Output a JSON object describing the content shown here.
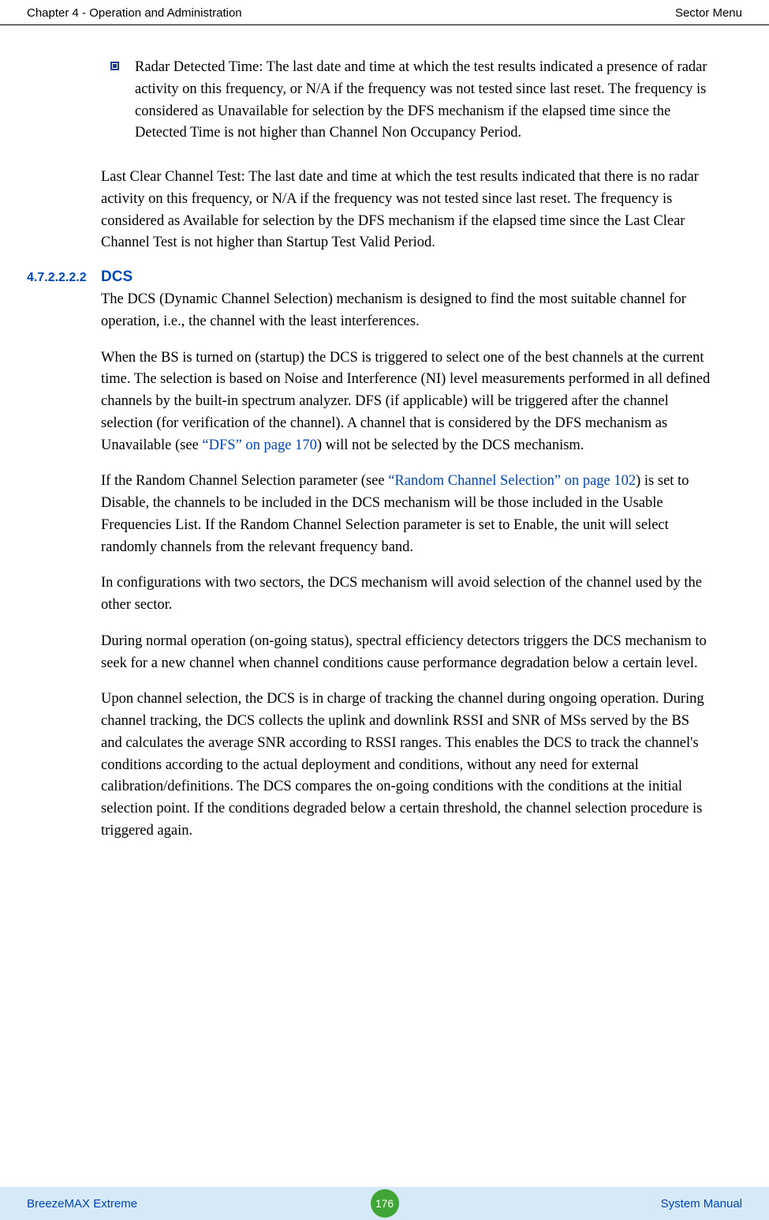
{
  "header": {
    "left": "Chapter 4 - Operation and Administration",
    "right": "Sector Menu"
  },
  "bullet": {
    "text": "Radar Detected Time: The last date and time at which the test results indicated a presence of radar activity on this frequency, or N/A if the frequency was not tested since last reset. The frequency is considered as Unavailable for selection by the DFS mechanism if the elapsed time since the Detected Time is not higher than Channel Non Occupancy Period."
  },
  "para_last_clear": "Last Clear Channel Test: The last date and time at which the test results indicated that there is no radar activity on this frequency, or N/A if the frequency was not tested since last reset. The frequency is considered as Available for selection by the DFS mechanism if the elapsed time since the Last Clear Channel Test is not higher than Startup Test Valid Period.",
  "section": {
    "number": "4.7.2.2.2.2",
    "title": "DCS"
  },
  "dcs": {
    "p1": "The DCS (Dynamic Channel Selection) mechanism is designed to find the most suitable channel for operation, i.e., the channel with the least interferences.",
    "p2a": "When the BS is turned on (startup) the DCS is triggered to select one of the best channels at the current time. The selection is based on Noise and Interference (NI) level measurements performed in all defined channels by the built-in spectrum analyzer. DFS (if applicable) will be triggered after the channel selection (for verification of the channel). A channel that is considered by the DFS mechanism as Unavailable (see ",
    "p2_link": "“DFS” on page 170",
    "p2b": ") will not be selected by the DCS mechanism.",
    "p3a": "If the Random Channel Selection parameter (see ",
    "p3_link": "“Random Channel Selection” on page 102",
    "p3b": ") is set to Disable, the channels to be included in the DCS mechanism will be those included in the Usable Frequencies List. If the Random Channel Selection parameter is set to Enable, the unit will select randomly channels from the relevant frequency band.",
    "p4": "In configurations with two sectors, the DCS mechanism will avoid selection of the channel used by the other sector.",
    "p5": "During normal operation (on-going status), spectral efficiency detectors triggers the DCS mechanism to seek for a new channel when channel conditions cause performance degradation below a certain level.",
    "p6": "Upon channel selection, the DCS is in charge of tracking the channel during ongoing operation. During channel tracking, the DCS collects the uplink and downlink RSSI and SNR of MSs served by the BS and calculates the average SNR according to RSSI ranges. This enables the DCS to track the channel's conditions according to the actual deployment and conditions, without any need for external calibration/definitions. The DCS compares the on-going conditions with the conditions at the initial selection point. If the conditions degraded below a certain threshold, the channel selection procedure is triggered again."
  },
  "footer": {
    "left": "BreezeMAX Extreme",
    "page": "176",
    "right": "System Manual"
  }
}
